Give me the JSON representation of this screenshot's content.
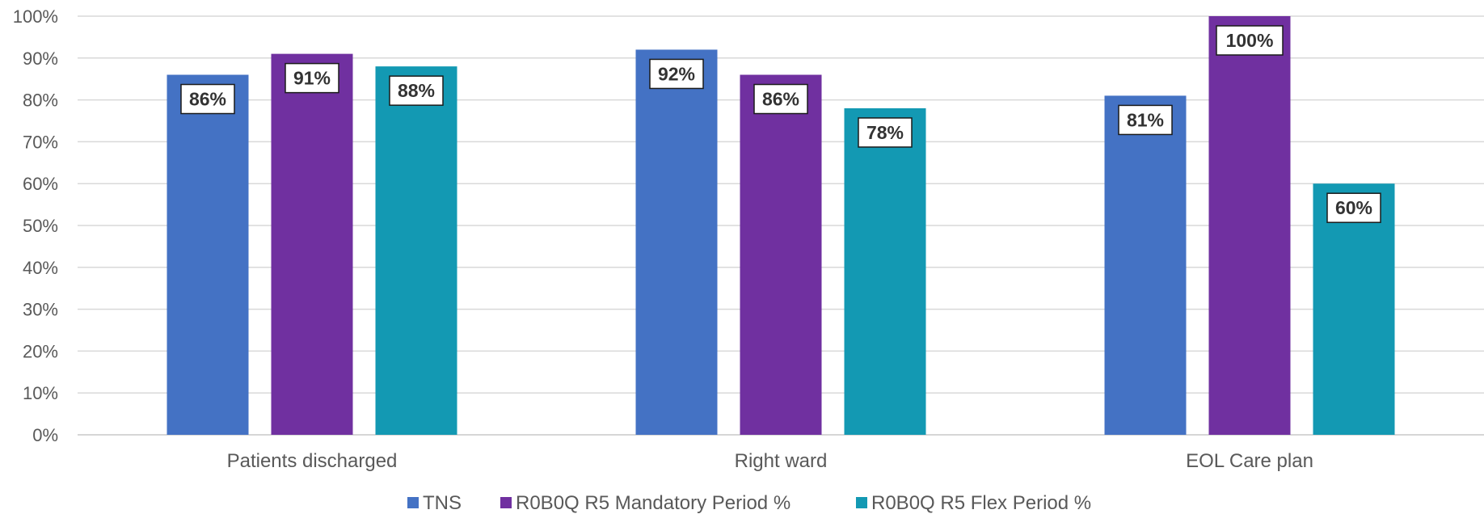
{
  "chart_data": {
    "type": "bar",
    "categories": [
      "Patients discharged",
      "Right ward",
      "EOL Care plan"
    ],
    "series": [
      {
        "name": "TNS",
        "values": [
          86,
          92,
          81
        ],
        "color": "#4472C4"
      },
      {
        "name": "R0B0Q R5 Mandatory Period %",
        "values": [
          91,
          86,
          100
        ],
        "color": "#7030A0"
      },
      {
        "name": "R0B0Q R5 Flex Period %",
        "values": [
          88,
          78,
          60
        ],
        "color": "#1399B3"
      }
    ],
    "data_labels": [
      [
        "86%",
        "92%",
        "81%"
      ],
      [
        "91%",
        "86%",
        "100%"
      ],
      [
        "88%",
        "78%",
        "60%"
      ]
    ],
    "y_ticks": [
      "0%",
      "10%",
      "20%",
      "30%",
      "40%",
      "50%",
      "60%",
      "70%",
      "80%",
      "90%",
      "100%"
    ],
    "ylim": [
      0,
      100
    ],
    "unit": "%",
    "grid": true,
    "legend_position": "bottom",
    "title": "",
    "xlabel": "",
    "ylabel": ""
  }
}
